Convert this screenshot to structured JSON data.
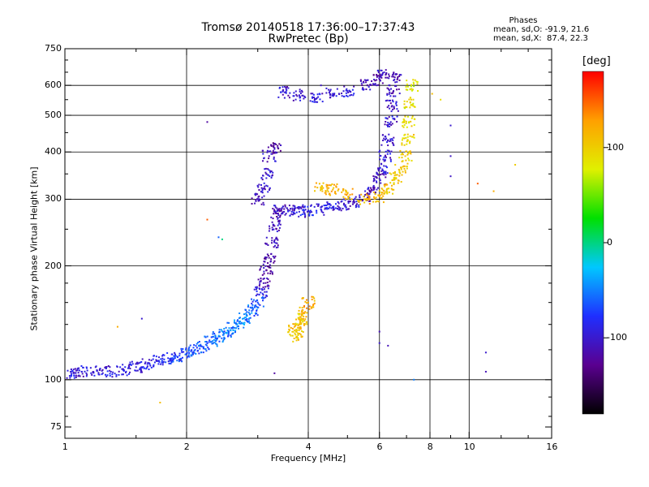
{
  "header": {
    "title_line1": "Tromsø 20140518 17:36:00–17:37:43",
    "title_line2": "RwPretec (Bp)"
  },
  "phases_box": {
    "title": "Phases",
    "line_o": "mean, sd,O: -91.9, 21.6",
    "line_x": "mean, sd,X:  87.4, 22.3"
  },
  "colorbar": {
    "unit": "[deg]",
    "ticks": [
      "100",
      "0",
      "-100"
    ],
    "tick_values": [
      100,
      0,
      -100
    ],
    "range": [
      -180,
      180
    ],
    "colors": [
      "#000000",
      "#5a0090",
      "#1f2fff",
      "#00c8ff",
      "#00e000",
      "#e0f000",
      "#ffa000",
      "#ff0000"
    ]
  },
  "chart_data": {
    "type": "scatter",
    "title": "Tromsø 20140518 17:36:00–17:37:43",
    "subtitle": "RwPretec (Bp)",
    "xlabel": "Frequency [MHz]",
    "ylabel": "Stationary phase Virtual Height [km]",
    "xscale": "log",
    "yscale": "log",
    "xlim": [
      1,
      16
    ],
    "ylim": [
      70,
      750
    ],
    "x_ticks": [
      "1",
      "2",
      "4",
      "6",
      "8",
      "10",
      "16"
    ],
    "x_tick_values": [
      1,
      2,
      4,
      6,
      8,
      10,
      16
    ],
    "x_grid_values": [
      2,
      4,
      6,
      8,
      10
    ],
    "x_minor_values": [
      1.5,
      3,
      5,
      7,
      9,
      12,
      14
    ],
    "y_ticks": [
      "75",
      "100",
      "200",
      "300",
      "400",
      "500",
      "600",
      "750"
    ],
    "y_tick_values": [
      75,
      100,
      200,
      300,
      400,
      500,
      600,
      750
    ],
    "y_grid_values": [
      100,
      200,
      300,
      400,
      500,
      600
    ],
    "y_minor_values": [
      80,
      90,
      120,
      140,
      160,
      180,
      250,
      350,
      450,
      550,
      650,
      700
    ],
    "grid": true,
    "color_meaning": "phase in degrees",
    "series": [
      {
        "trace_points": [
          [
            1.05,
            104,
            -95
          ],
          [
            1.1,
            105,
            -100
          ],
          [
            1.2,
            106,
            -98
          ],
          [
            1.3,
            105,
            -95
          ],
          [
            1.4,
            106,
            -97
          ],
          [
            1.5,
            108,
            -93
          ],
          [
            1.6,
            110,
            -90
          ],
          [
            1.7,
            112,
            -85
          ],
          [
            1.8,
            114,
            -80
          ],
          [
            1.9,
            115,
            -75
          ],
          [
            2.0,
            117,
            -70
          ],
          [
            2.1,
            120,
            -65
          ],
          [
            2.2,
            122,
            -60
          ],
          [
            2.3,
            126,
            -55
          ],
          [
            2.4,
            130,
            -55
          ],
          [
            2.5,
            133,
            -55
          ],
          [
            2.6,
            137,
            -50
          ],
          [
            2.7,
            141,
            -48
          ],
          [
            2.8,
            146,
            -50
          ],
          [
            2.9,
            152,
            -60
          ],
          [
            3.0,
            160,
            -70
          ],
          [
            3.05,
            170,
            -90
          ],
          [
            3.1,
            180,
            -110
          ],
          [
            3.15,
            195,
            -120
          ],
          [
            3.2,
            210,
            -120
          ],
          [
            3.25,
            230,
            -115
          ],
          [
            3.3,
            255,
            -110
          ],
          [
            3.35,
            275,
            -115
          ],
          [
            3.4,
            283,
            -105
          ],
          [
            3.6,
            280,
            -100
          ],
          [
            3.8,
            278,
            -95
          ],
          [
            4.0,
            280,
            -90
          ],
          [
            4.3,
            282,
            -90
          ],
          [
            4.6,
            285,
            -95
          ],
          [
            4.9,
            290,
            -100
          ],
          [
            5.2,
            295,
            -105
          ],
          [
            5.5,
            305,
            -110
          ],
          [
            5.8,
            320,
            -110
          ],
          [
            6.0,
            340,
            -105
          ],
          [
            6.1,
            360,
            -100
          ],
          [
            6.2,
            390,
            -100
          ],
          [
            6.3,
            430,
            -100
          ],
          [
            6.4,
            480,
            -100
          ],
          [
            6.45,
            530,
            -105
          ],
          [
            6.5,
            580,
            -110
          ],
          [
            6.55,
            630,
            -115
          ],
          [
            3.7,
            135,
            110
          ],
          [
            3.8,
            140,
            115
          ],
          [
            3.9,
            150,
            120
          ],
          [
            4.0,
            160,
            120
          ],
          [
            3.75,
            130,
            105
          ],
          [
            3.85,
            145,
            100
          ],
          [
            4.3,
            320,
            110
          ],
          [
            4.6,
            318,
            115
          ],
          [
            5.0,
            310,
            120
          ],
          [
            5.5,
            300,
            115
          ],
          [
            6.0,
            305,
            110
          ],
          [
            6.3,
            320,
            110
          ],
          [
            6.6,
            340,
            105
          ],
          [
            6.8,
            360,
            100
          ],
          [
            6.95,
            390,
            100
          ],
          [
            7.05,
            430,
            95
          ],
          [
            7.1,
            480,
            90
          ],
          [
            7.15,
            540,
            85
          ],
          [
            7.2,
            600,
            80
          ],
          [
            3.0,
            300,
            -110
          ],
          [
            3.1,
            320,
            -105
          ],
          [
            3.15,
            350,
            -100
          ],
          [
            3.2,
            390,
            -110
          ],
          [
            3.3,
            410,
            -120
          ],
          [
            3.5,
            575,
            -105
          ],
          [
            3.8,
            565,
            -100
          ],
          [
            4.2,
            555,
            -95
          ],
          [
            4.6,
            570,
            -100
          ],
          [
            5.0,
            580,
            -95
          ],
          [
            5.6,
            600,
            -110
          ],
          [
            5.9,
            620,
            -115
          ],
          [
            6.1,
            640,
            -110
          ]
        ],
        "isolated_points": [
          [
            2.25,
            480,
            -120
          ],
          [
            2.25,
            265,
            150
          ],
          [
            2.4,
            238,
            -60
          ],
          [
            2.45,
            235,
            0
          ],
          [
            1.72,
            87,
            110
          ],
          [
            1.55,
            145,
            -100
          ],
          [
            1.35,
            138,
            120
          ],
          [
            3.3,
            104,
            -120
          ],
          [
            6.0,
            134,
            -110
          ],
          [
            6.0,
            125,
            -100
          ],
          [
            6.3,
            123,
            -110
          ],
          [
            7.3,
            100,
            -50
          ],
          [
            9.0,
            470,
            -100
          ],
          [
            9.0,
            390,
            -105
          ],
          [
            9.0,
            345,
            -105
          ],
          [
            8.5,
            550,
            90
          ],
          [
            8.1,
            570,
            110
          ],
          [
            10.5,
            330,
            150
          ],
          [
            11.5,
            315,
            120
          ],
          [
            11.0,
            118,
            -100
          ],
          [
            11.0,
            105,
            -110
          ],
          [
            13.0,
            370,
            100
          ],
          [
            4.3,
            600,
            -105
          ]
        ]
      }
    ]
  }
}
